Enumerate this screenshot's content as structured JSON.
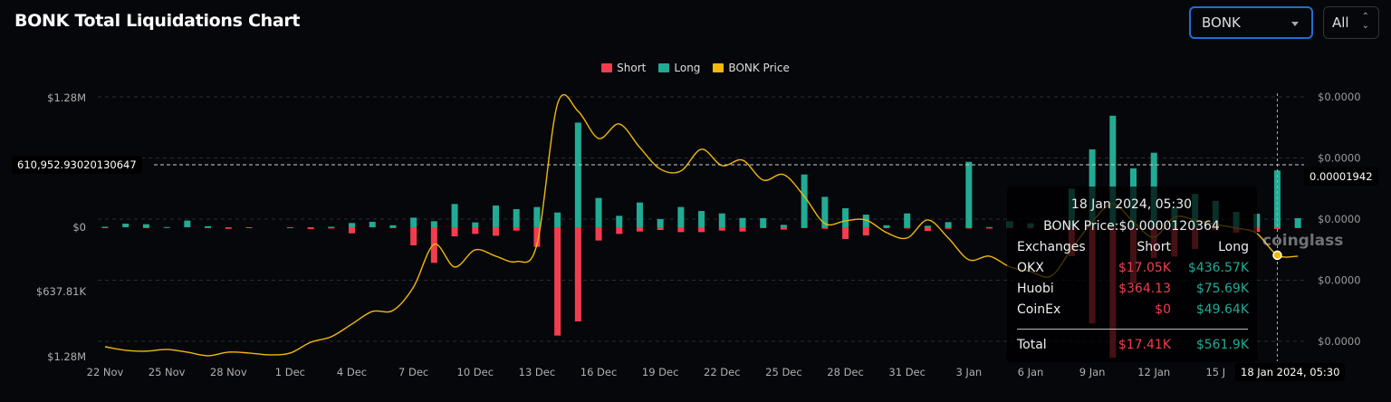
{
  "header": {
    "title": "BONK Total Liquidations Chart",
    "coin_select": "BONK",
    "range_select": "All"
  },
  "colors": {
    "short": "#f23d4f",
    "long": "#22ab94",
    "price": "#f0b90b",
    "background": "#06070b",
    "select_border": "#1f6fd6"
  },
  "chart_data": {
    "type": "bar",
    "stacked": false,
    "legend": {
      "position": "top-center",
      "items": [
        "Short",
        "Long",
        "BONK Price"
      ]
    },
    "grid": true,
    "categories": [
      "22 Nov",
      "23 Nov",
      "24 Nov",
      "25 Nov",
      "26 Nov",
      "27 Nov",
      "28 Nov",
      "29 Nov",
      "30 Nov",
      "1 Dec",
      "2 Dec",
      "3 Dec",
      "4 Dec",
      "5 Dec",
      "6 Dec",
      "7 Dec",
      "8 Dec",
      "9 Dec",
      "10 Dec",
      "11 Dec",
      "12 Dec",
      "13 Dec",
      "14 Dec",
      "15 Dec",
      "16 Dec",
      "17 Dec",
      "18 Dec",
      "19 Dec",
      "20 Dec",
      "21 Dec",
      "22 Dec",
      "23 Dec",
      "24 Dec",
      "25 Dec",
      "26 Dec",
      "27 Dec",
      "28 Dec",
      "29 Dec",
      "30 Dec",
      "31 Dec",
      "1 Jan",
      "2 Jan",
      "3 Jan",
      "4 Jan",
      "5 Jan",
      "6 Jan",
      "7 Jan",
      "8 Jan",
      "9 Jan",
      "10 Jan",
      "11 Jan",
      "12 Jan",
      "13 Jan",
      "14 Jan",
      "15 Jan",
      "16 Jan",
      "17 Jan",
      "18 Jan",
      "19 Jan"
    ],
    "x_tick_labels": [
      "22 Nov",
      "25 Nov",
      "28 Nov",
      "1 Dec",
      "4 Dec",
      "7 Dec",
      "10 Dec",
      "13 Dec",
      "16 Dec",
      "19 Dec",
      "22 Dec",
      "25 Dec",
      "28 Dec",
      "31 Dec",
      "3 Jan",
      "6 Jan",
      "9 Jan",
      "12 Jan",
      "15 J"
    ],
    "y_left": {
      "tick_labels": [
        "$1.28M",
        "$0",
        "$637.81K",
        "$1.28M"
      ],
      "tick_values": [
        1280000,
        0,
        -637810,
        -1280000
      ],
      "range": [
        -1325000,
        1370000
      ]
    },
    "y_right": {
      "tick_labels": [
        "$0.0000",
        "$0.0000",
        "$0.0000",
        "$0.0000",
        "$0.0000"
      ],
      "range": [
        3.4e-06,
        2.56e-05
      ]
    },
    "series": [
      {
        "name": "Short",
        "axis": "left",
        "direction": "down",
        "values": [
          3000,
          0,
          2000,
          0,
          0,
          3000,
          15000,
          3000,
          0,
          3000,
          18000,
          12000,
          60000,
          0,
          4000,
          179000,
          352000,
          90000,
          66000,
          84000,
          33000,
          194000,
          1071000,
          931000,
          131000,
          66000,
          42000,
          27000,
          48000,
          48000,
          33000,
          42000,
          2000,
          24000,
          2000,
          15000,
          116000,
          81000,
          2000,
          12000,
          36000,
          15000,
          12000,
          12000,
          5000,
          10000,
          20000,
          286000,
          950000,
          1290000,
          555000,
          304000,
          290000,
          215000,
          30000,
          54000,
          45000,
          17410,
          5000
        ]
      },
      {
        "name": "Long",
        "axis": "left",
        "direction": "up",
        "values": [
          5000,
          36000,
          30000,
          2000,
          66000,
          10000,
          0,
          0,
          0,
          0,
          0,
          5000,
          42000,
          54000,
          20000,
          95000,
          60000,
          230000,
          48000,
          215000,
          179000,
          200000,
          146000,
          1035000,
          290000,
          113000,
          245000,
          81000,
          200000,
          161000,
          137000,
          92000,
          90000,
          24000,
          522000,
          301000,
          188000,
          125000,
          20000,
          137000,
          15000,
          51000,
          647000,
          2000,
          60000,
          39000,
          20000,
          382000,
          770000,
          1103000,
          582000,
          737000,
          200000,
          330000,
          260000,
          152000,
          134000,
          561900,
          90000
        ]
      },
      {
        "name": "BONK Price",
        "type": "line",
        "axis": "right",
        "values": [
          4.58e-06,
          4.29e-06,
          4.22e-06,
          4.36e-06,
          4.14e-06,
          3.85e-06,
          4.14e-06,
          4.07e-06,
          3.92e-06,
          4.07e-06,
          4.95e-06,
          5.4e-06,
          6.43e-06,
          7.46e-06,
          7.54e-06,
          9.45e-06,
          1.292e-05,
          1.108e-05,
          1.248e-05,
          1.196e-05,
          1.152e-05,
          1.292e-05,
          2.436e-05,
          2.377e-05,
          2.155e-05,
          2.273e-05,
          2.082e-05,
          1.905e-05,
          1.89e-05,
          2.067e-05,
          1.934e-05,
          1.978e-05,
          1.816e-05,
          1.86e-05,
          1.683e-05,
          1.462e-05,
          1.484e-05,
          1.491e-05,
          1.388e-05,
          1.344e-05,
          1.491e-05,
          1.344e-05,
          1.167e-05,
          1.196e-05,
          1.108e-05,
          1.071e-05,
          1.034e-05,
          1.255e-05,
          1.477e-05,
          1.624e-05,
          1.477e-05,
          1.351e-05,
          1.514e-05,
          1.491e-05,
          1.455e-05,
          1.425e-05,
          1.381e-05,
          1.20364e-05,
          1.196e-05
        ]
      }
    ],
    "crosshair": {
      "category": "18 Jan",
      "x_label": "18 Jan 2024, 05:30",
      "left_value_label": "610,952.93020130647",
      "right_value_label": "0.00001942"
    }
  },
  "tooltip": {
    "date": "18 Jan 2024, 05:30",
    "price": "BONK Price:$0.0000120364",
    "headers": [
      "Exchanges",
      "Short",
      "Long"
    ],
    "rows": [
      {
        "exchange": "OKX",
        "short": "$17.05K",
        "long": "$436.57K"
      },
      {
        "exchange": "Huobi",
        "short": "$364.13",
        "long": "$75.69K"
      },
      {
        "exchange": "CoinEx",
        "short": "$0",
        "long": "$49.64K"
      }
    ],
    "total": {
      "label": "Total",
      "short": "$17.41K",
      "long": "$561.9K"
    }
  },
  "watermark": "coinglass"
}
